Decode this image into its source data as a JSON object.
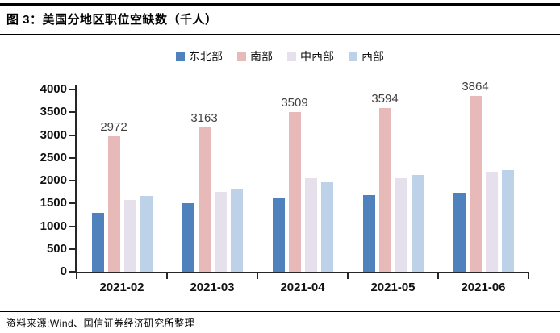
{
  "header": {
    "title": "图 3：美国分地区职位空缺数（千人）"
  },
  "footer": {
    "source": "资料来源:Wind、国信证券经济研究所整理"
  },
  "chart_data": {
    "type": "bar",
    "title": "美国分地区职位空缺数（千人）",
    "categories": [
      "2021-02",
      "2021-03",
      "2021-04",
      "2021-05",
      "2021-06"
    ],
    "series": [
      {
        "name": "东北部",
        "color": "#4F81BD",
        "values": [
          1290,
          1500,
          1630,
          1680,
          1740
        ]
      },
      {
        "name": "南部",
        "color": "#E7B9B8",
        "values": [
          2972,
          3163,
          3509,
          3594,
          3864
        ],
        "data_labels": [
          "2972",
          "3163",
          "3509",
          "3594",
          "3864"
        ]
      },
      {
        "name": "中西部",
        "color": "#E6E0EC",
        "values": [
          1570,
          1760,
          2060,
          2060,
          2200
        ]
      },
      {
        "name": "西部",
        "color": "#BDD2E8",
        "values": [
          1660,
          1810,
          1970,
          2130,
          2230
        ]
      }
    ],
    "ylim": [
      0,
      4000
    ],
    "y_ticks": [
      0,
      500,
      1000,
      1500,
      2000,
      2500,
      3000,
      3500,
      4000
    ],
    "legend_position": "top",
    "grid": false,
    "axis_color": "#262626",
    "data_label_color": "#404040"
  }
}
